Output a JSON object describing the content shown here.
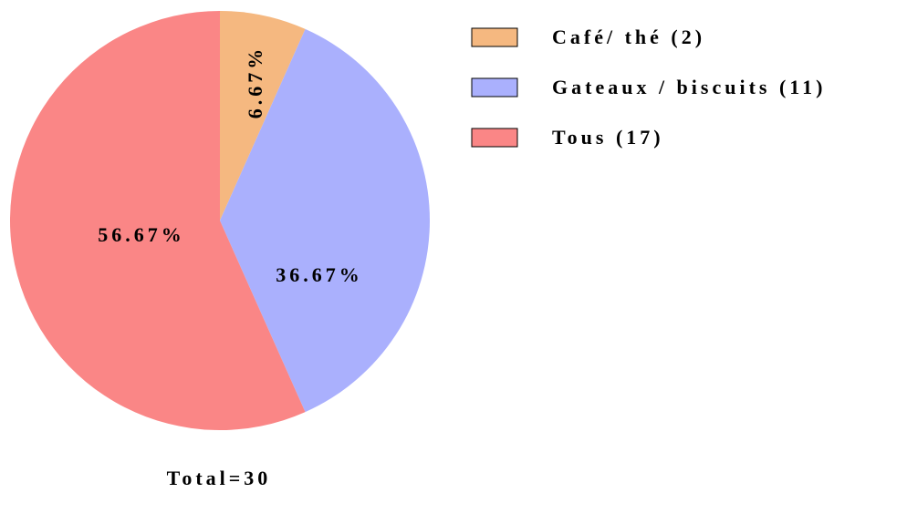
{
  "chart_data": {
    "type": "pie",
    "categories": [
      "Café/ thé (2)",
      "Gateaux / biscuits (11)",
      "Tous (17)"
    ],
    "values": [
      6.67,
      36.67,
      56.67
    ],
    "value_labels": [
      "6.67%",
      "36.67%",
      "56.67%"
    ],
    "colors": [
      "#f5b880",
      "#aab0fd",
      "#fa8686"
    ],
    "footer": "Total=30"
  }
}
